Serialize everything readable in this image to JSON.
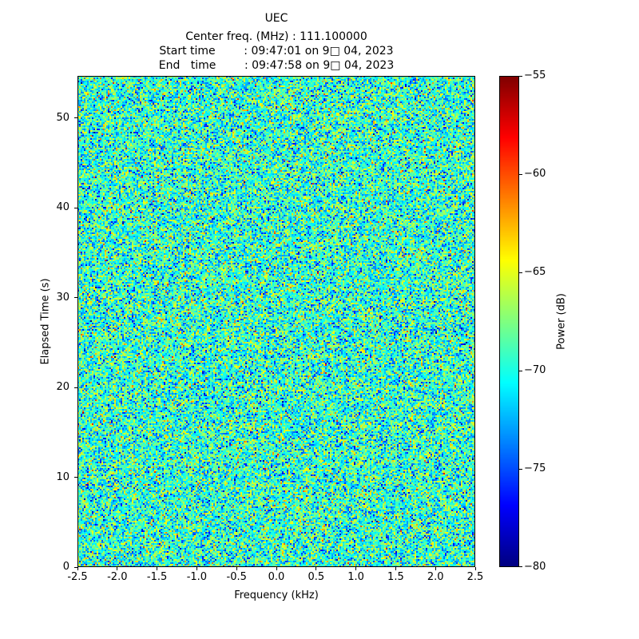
{
  "chart_data": {
    "type": "heatmap",
    "title": "UEC",
    "annotations": [
      "Center freq. (MHz) : 111.100000",
      "Start time        : 09:47:01 on 9□ 04, 2023",
      "End   time        : 09:47:58 on 9□ 04, 2023"
    ],
    "xlabel": "Frequency (kHz)",
    "ylabel": "Elapsed Time (s)",
    "xlim": [
      -2.5,
      2.5
    ],
    "ylim": [
      0,
      54.7
    ],
    "x_ticks": {
      "values": [
        -2.5,
        -2.0,
        -1.5,
        -1.0,
        -0.5,
        0.0,
        0.5,
        1.0,
        1.5,
        2.0,
        2.5
      ],
      "labels": [
        "-2.5",
        "-2.0",
        "-1.5",
        "-1.0",
        "-0.5",
        "0.0",
        "0.5",
        "1.0",
        "1.5",
        "2.0",
        "2.5"
      ]
    },
    "y_ticks": {
      "values": [
        0,
        10,
        20,
        30,
        40,
        50
      ],
      "labels": [
        "0",
        "10",
        "20",
        "30",
        "40",
        "50"
      ]
    },
    "colorbar": {
      "label": "Power (dB)",
      "lim": [
        -80,
        -55
      ],
      "colormap": "jet",
      "ticks": {
        "values": [
          -55,
          -60,
          -65,
          -70,
          -75,
          -80
        ],
        "labels": [
          "−55",
          "−60",
          "−65",
          "−70",
          "−75",
          "−80"
        ]
      }
    },
    "data_description": {
      "kind": "gaussian_random_noise_spectrogram",
      "mean_db": -69.5,
      "std_db": 3.2,
      "seed": 42,
      "rows": 308,
      "cols": 249
    }
  }
}
